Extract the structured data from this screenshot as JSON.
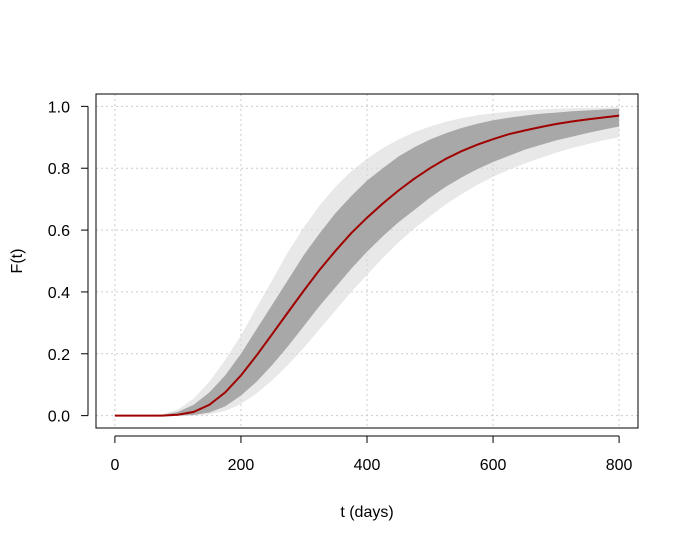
{
  "chart_data": {
    "type": "line",
    "title": "",
    "xlabel": "t (days)",
    "ylabel": "F(t)",
    "xlim": [
      -30,
      830
    ],
    "ylim": [
      -0.04,
      1.04
    ],
    "x_ticks": [
      0,
      200,
      400,
      600,
      800
    ],
    "y_ticks": [
      0.0,
      0.2,
      0.4,
      0.6,
      0.8,
      1.0
    ],
    "x_tick_labels": [
      "0",
      "200",
      "400",
      "600",
      "800"
    ],
    "y_tick_labels": [
      "0.0",
      "0.2",
      "0.4",
      "0.6",
      "0.8",
      "1.0"
    ],
    "grid": true,
    "legend": "none",
    "colors": {
      "mean": "#a00000",
      "band": "#a8a8a8",
      "band_edge": "#d9d9d9",
      "grid": "#cccccc",
      "frame": "#000000"
    },
    "series": [
      {
        "role": "mean",
        "x": [
          0,
          25,
          50,
          75,
          100,
          125,
          150,
          175,
          200,
          225,
          250,
          275,
          300,
          325,
          350,
          375,
          400,
          425,
          450,
          475,
          500,
          525,
          550,
          575,
          600,
          625,
          650,
          675,
          700,
          725,
          750,
          775,
          800
        ],
        "y": [
          0.0,
          0.0,
          0.0,
          0.0,
          0.003,
          0.012,
          0.035,
          0.075,
          0.13,
          0.195,
          0.265,
          0.335,
          0.405,
          0.472,
          0.533,
          0.59,
          0.64,
          0.686,
          0.728,
          0.766,
          0.8,
          0.83,
          0.855,
          0.876,
          0.894,
          0.91,
          0.922,
          0.933,
          0.943,
          0.951,
          0.958,
          0.964,
          0.97
        ]
      },
      {
        "role": "band-upper",
        "x": [
          0,
          25,
          50,
          75,
          100,
          125,
          150,
          175,
          200,
          225,
          250,
          275,
          300,
          325,
          350,
          375,
          400,
          425,
          450,
          475,
          500,
          525,
          550,
          575,
          600,
          625,
          650,
          675,
          700,
          725,
          750,
          775,
          800
        ],
        "y": [
          0.0,
          0.0,
          0.0,
          0.002,
          0.012,
          0.035,
          0.075,
          0.13,
          0.2,
          0.28,
          0.36,
          0.44,
          0.52,
          0.59,
          0.655,
          0.71,
          0.76,
          0.8,
          0.838,
          0.868,
          0.893,
          0.913,
          0.93,
          0.944,
          0.955,
          0.963,
          0.97,
          0.976,
          0.98,
          0.984,
          0.987,
          0.99,
          0.992
        ]
      },
      {
        "role": "band-lower",
        "x": [
          0,
          25,
          50,
          75,
          100,
          125,
          150,
          175,
          200,
          225,
          250,
          275,
          300,
          325,
          350,
          375,
          400,
          425,
          450,
          475,
          500,
          525,
          550,
          575,
          600,
          625,
          650,
          675,
          700,
          725,
          750,
          775,
          800
        ],
        "y": [
          0.0,
          0.0,
          0.0,
          0.0,
          0.0,
          0.002,
          0.01,
          0.03,
          0.065,
          0.11,
          0.165,
          0.225,
          0.29,
          0.355,
          0.415,
          0.475,
          0.53,
          0.58,
          0.625,
          0.665,
          0.705,
          0.74,
          0.77,
          0.797,
          0.82,
          0.84,
          0.86,
          0.875,
          0.89,
          0.902,
          0.914,
          0.925,
          0.935
        ]
      },
      {
        "role": "outer-upper",
        "x": [
          0,
          25,
          50,
          75,
          100,
          125,
          150,
          175,
          200,
          225,
          250,
          275,
          300,
          325,
          350,
          375,
          400,
          425,
          450,
          475,
          500,
          525,
          550,
          575,
          600,
          625,
          650,
          675,
          700,
          725,
          750,
          775,
          800
        ],
        "y": [
          0.0,
          0.0,
          0.0,
          0.005,
          0.02,
          0.055,
          0.11,
          0.18,
          0.26,
          0.35,
          0.44,
          0.53,
          0.61,
          0.68,
          0.74,
          0.79,
          0.83,
          0.865,
          0.893,
          0.916,
          0.935,
          0.95,
          0.962,
          0.971,
          0.978,
          0.983,
          0.987,
          0.99,
          0.992,
          0.994,
          0.995,
          0.996,
          0.997
        ]
      },
      {
        "role": "outer-lower",
        "x": [
          0,
          25,
          50,
          75,
          100,
          125,
          150,
          175,
          200,
          225,
          250,
          275,
          300,
          325,
          350,
          375,
          400,
          425,
          450,
          475,
          500,
          525,
          550,
          575,
          600,
          625,
          650,
          675,
          700,
          725,
          750,
          775,
          800
        ],
        "y": [
          0.0,
          0.0,
          0.0,
          0.0,
          0.0,
          0.0,
          0.004,
          0.015,
          0.038,
          0.072,
          0.115,
          0.165,
          0.22,
          0.28,
          0.34,
          0.4,
          0.455,
          0.51,
          0.56,
          0.605,
          0.645,
          0.683,
          0.716,
          0.746,
          0.772,
          0.795,
          0.815,
          0.833,
          0.85,
          0.865,
          0.878,
          0.89,
          0.9
        ]
      }
    ]
  }
}
